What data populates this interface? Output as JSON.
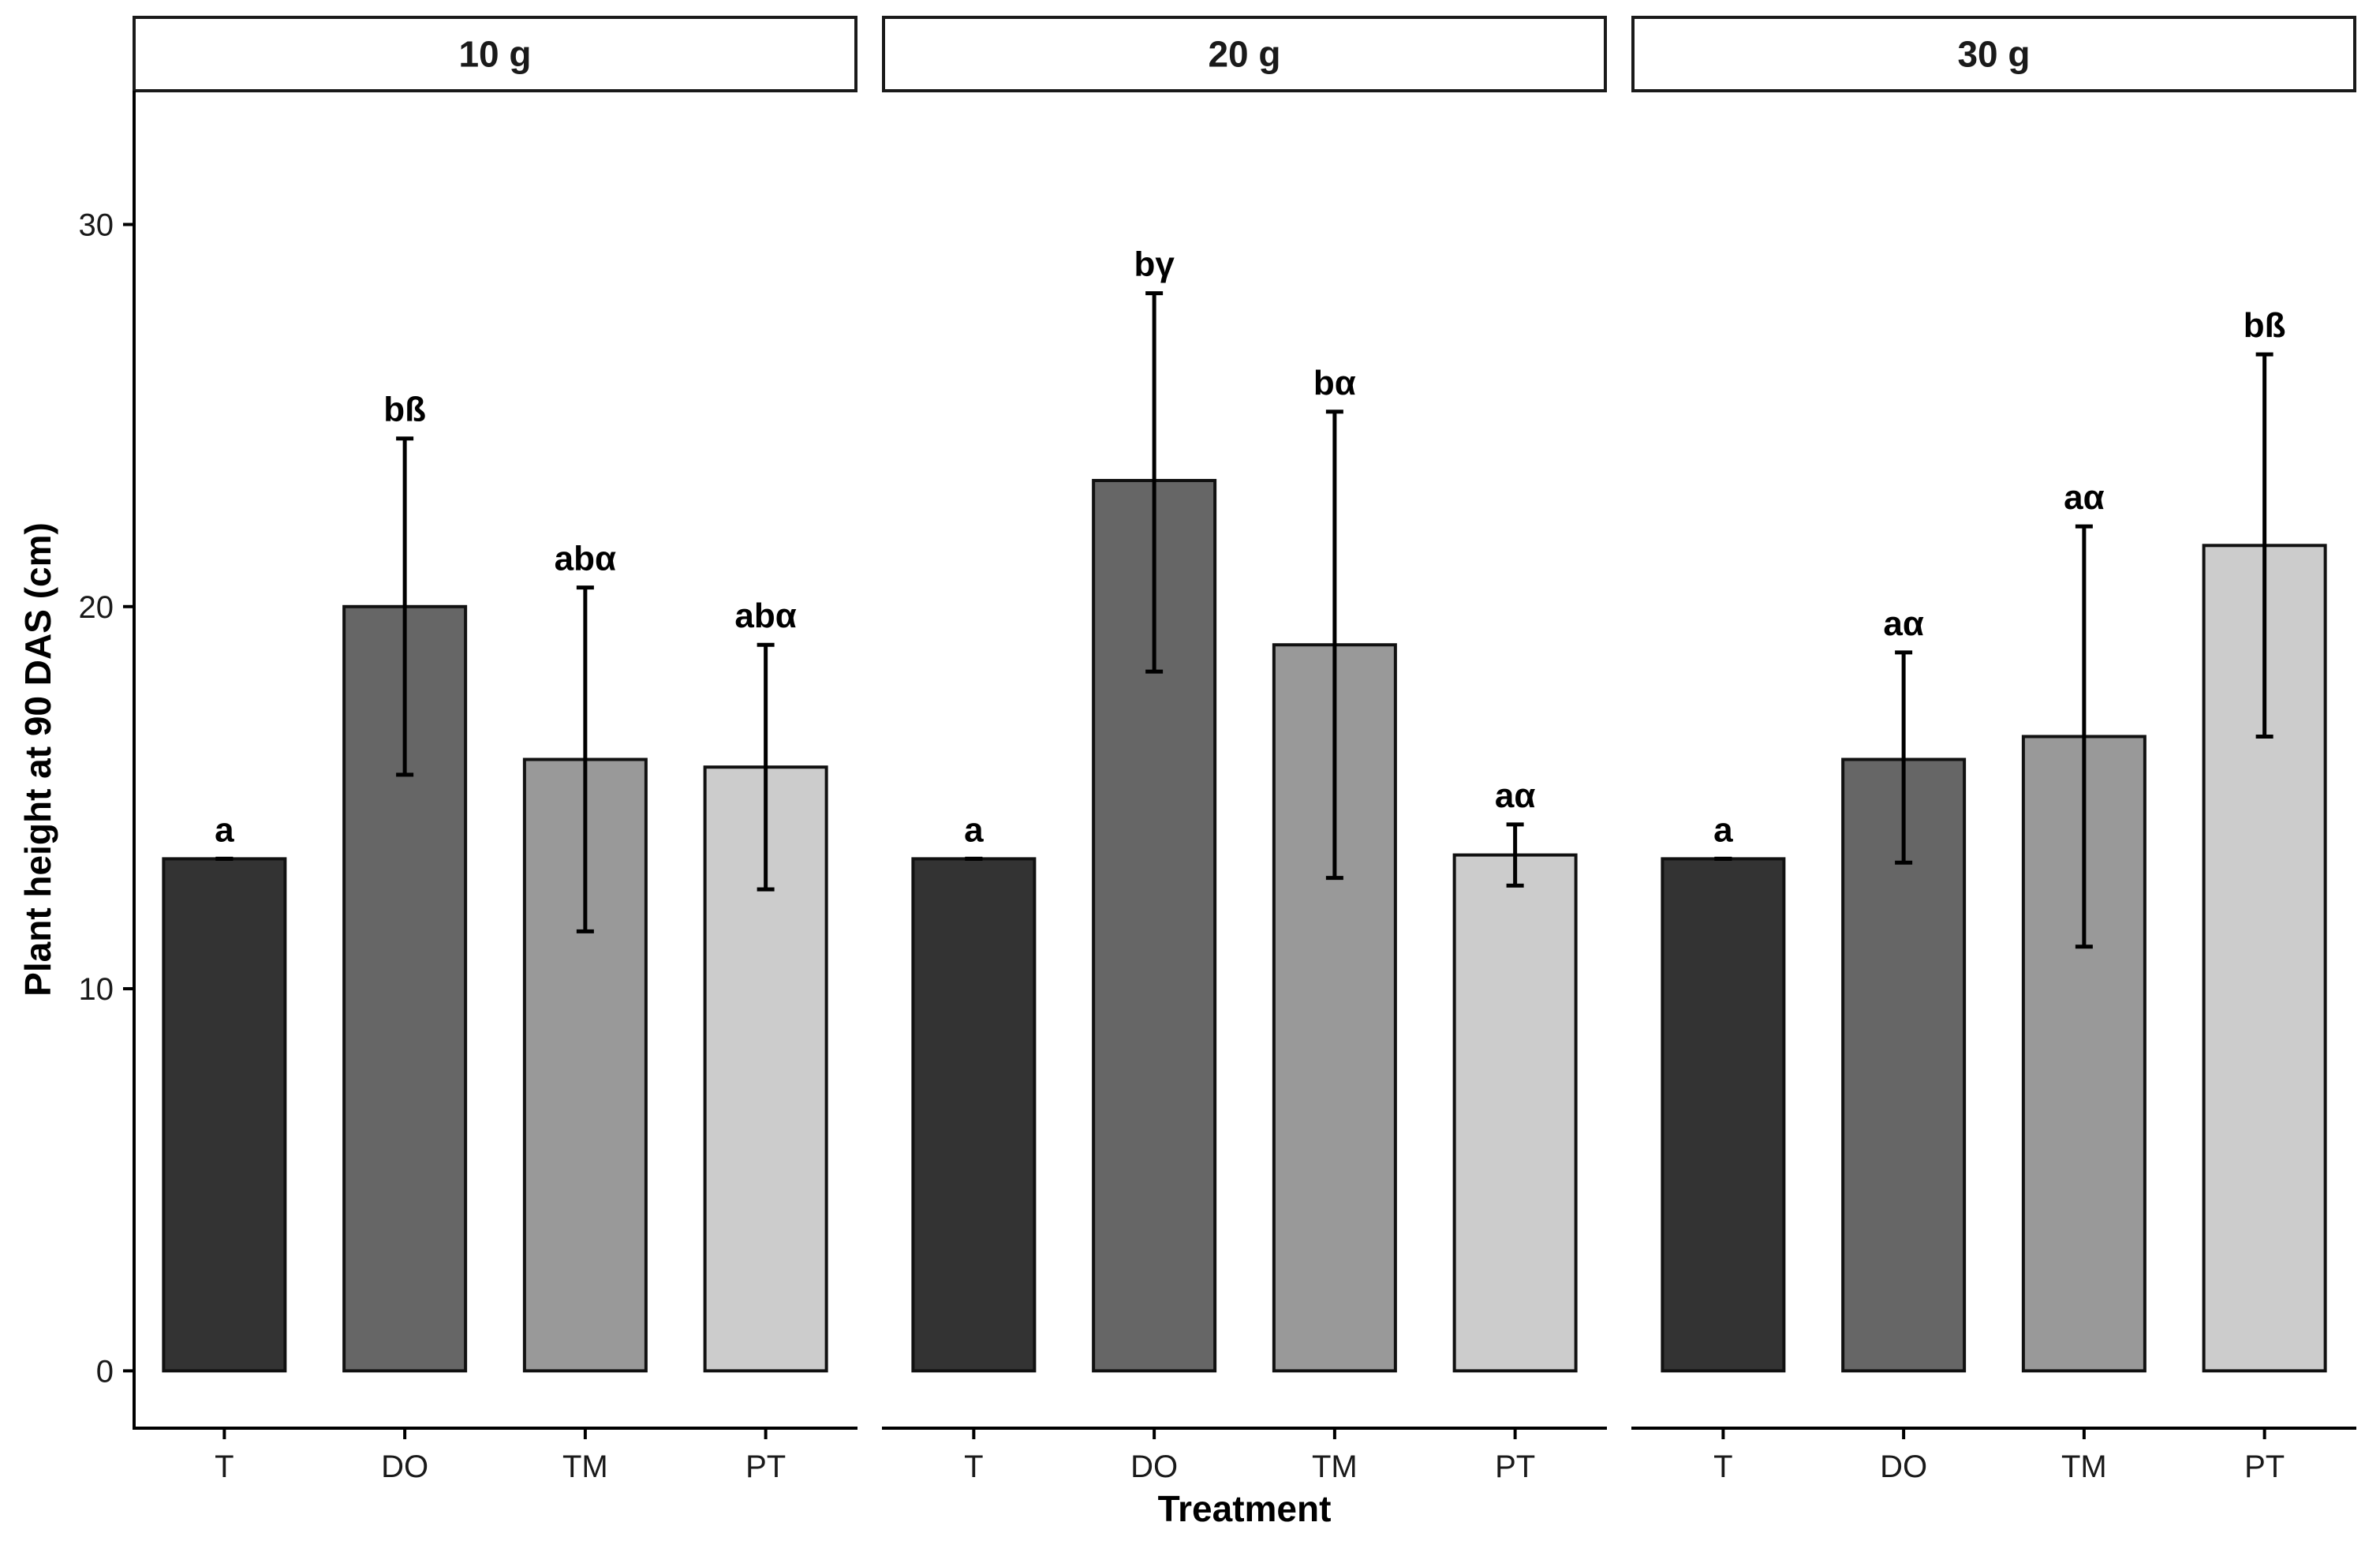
{
  "chart_data": {
    "type": "bar",
    "xlabel": "Treatment",
    "ylabel": "Plant height at 90 DAS (cm)",
    "ylim": [
      -1.5,
      33.5
    ],
    "yticks": [
      0,
      10,
      20,
      30
    ],
    "grid": false,
    "categories": [
      "T",
      "DO",
      "TM",
      "PT"
    ],
    "fill_colors": {
      "T": "#333333",
      "DO": "#666666",
      "TM": "#999999",
      "PT": "#cccccc"
    },
    "panels": [
      {
        "name": "10 g",
        "bars": [
          {
            "category": "T",
            "value": 13.4,
            "err_low": 13.4,
            "err_high": 13.4,
            "label": "a"
          },
          {
            "category": "DO",
            "value": 20.0,
            "err_low": 15.6,
            "err_high": 24.4,
            "label": "bß"
          },
          {
            "category": "TM",
            "value": 16.0,
            "err_low": 11.5,
            "err_high": 20.5,
            "label": "abα"
          },
          {
            "category": "PT",
            "value": 15.8,
            "err_low": 12.6,
            "err_high": 19.0,
            "label": "abα"
          }
        ]
      },
      {
        "name": "20 g",
        "bars": [
          {
            "category": "T",
            "value": 13.4,
            "err_low": 13.4,
            "err_high": 13.4,
            "label": "a"
          },
          {
            "category": "DO",
            "value": 23.3,
            "err_low": 18.3,
            "err_high": 28.2,
            "label": "bγ"
          },
          {
            "category": "TM",
            "value": 19.0,
            "err_low": 12.9,
            "err_high": 25.1,
            "label": "bα"
          },
          {
            "category": "PT",
            "value": 13.5,
            "err_low": 12.7,
            "err_high": 14.3,
            "label": "aα"
          }
        ]
      },
      {
        "name": "30 g",
        "bars": [
          {
            "category": "T",
            "value": 13.4,
            "err_low": 13.4,
            "err_high": 13.4,
            "label": "a"
          },
          {
            "category": "DO",
            "value": 16.0,
            "err_low": 13.3,
            "err_high": 18.8,
            "label": "aα"
          },
          {
            "category": "TM",
            "value": 16.6,
            "err_low": 11.1,
            "err_high": 22.1,
            "label": "aα"
          },
          {
            "category": "PT",
            "value": 21.6,
            "err_low": 16.6,
            "err_high": 26.6,
            "label": "bß"
          }
        ]
      }
    ]
  }
}
